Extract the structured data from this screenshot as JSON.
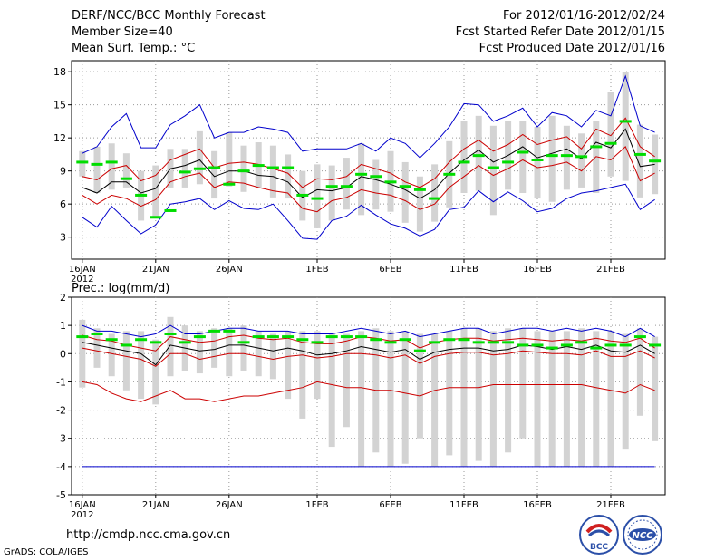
{
  "header": {
    "title": "DERF/NCC/BCC Monthly Forecast",
    "member_size": "Member Size=40",
    "variable": "Mean Surf. Temp.: °C",
    "period": "For 2012/01/16-2012/02/24",
    "start_date": "Fcst Started Refer Date 2012/01/15",
    "produced_date": "Fcst Produced Date 2012/01/16"
  },
  "footer": {
    "url": "http://cmdp.ncc.cma.gov.cn",
    "credit": "GrADS: COLA/IGES"
  },
  "logos": {
    "bcc": "BCC",
    "ncc": "NCC"
  },
  "colors": {
    "bar": "#d3d3d3",
    "median": "#00dd00",
    "max_min": "#0000cc",
    "spread": "#cc0000",
    "mean": "#000000",
    "grid": "#999999"
  },
  "chart_data": [
    {
      "type": "line",
      "title": "Mean Surf. Temp.: °C",
      "ylabel": "°C",
      "ylim": [
        1,
        19
      ],
      "yticks": [
        3,
        6,
        9,
        12,
        15,
        18
      ],
      "xticks": [
        {
          "day": 0,
          "label": "16JAN",
          "sublabel": "2012"
        },
        {
          "day": 5,
          "label": "21JAN"
        },
        {
          "day": 10,
          "label": "26JAN"
        },
        {
          "day": 16,
          "label": "1FEB"
        },
        {
          "day": 21,
          "label": "6FEB"
        },
        {
          "day": 26,
          "label": "11FEB"
        },
        {
          "day": 31,
          "label": "16FEB"
        },
        {
          "day": 36,
          "label": "21FEB"
        }
      ],
      "days": 40,
      "series": [
        {
          "name": "maximum",
          "color": "#0000cc",
          "values": [
            10.6,
            11.2,
            13.0,
            14.2,
            11.1,
            11.1,
            13.2,
            14.0,
            15.0,
            12.0,
            12.5,
            12.5,
            13.0,
            12.8,
            12.5,
            10.8,
            11.0,
            11.0,
            11.0,
            11.5,
            10.8,
            12.0,
            11.5,
            10.2,
            11.5,
            13.0,
            15.1,
            15.0,
            13.5,
            14.0,
            14.7,
            13.0,
            14.3,
            14.0,
            13.0,
            14.5,
            14.0,
            17.6,
            13.1,
            12.5
          ]
        },
        {
          "name": "mean_plus_spread",
          "color": "#cc0000",
          "values": [
            8.5,
            8.2,
            9.2,
            9.5,
            8.1,
            8.6,
            10.0,
            10.5,
            11.0,
            9.3,
            9.7,
            9.8,
            9.6,
            9.2,
            8.8,
            7.5,
            8.3,
            8.2,
            8.5,
            9.6,
            9.2,
            8.8,
            8.0,
            7.5,
            8.3,
            9.8,
            11.0,
            11.8,
            10.8,
            11.4,
            12.3,
            11.4,
            11.8,
            12.1,
            11.0,
            12.8,
            12.2,
            13.8,
            11.2,
            10.3
          ]
        },
        {
          "name": "ensemble_mean",
          "color": "#000000",
          "values": [
            7.5,
            7.0,
            8.0,
            8.0,
            7.0,
            7.4,
            9.2,
            9.5,
            10.0,
            8.5,
            9.0,
            9.0,
            8.6,
            8.5,
            8.0,
            6.6,
            7.3,
            7.2,
            7.5,
            8.5,
            8.2,
            7.8,
            7.3,
            6.5,
            7.3,
            8.8,
            10.0,
            10.9,
            9.8,
            10.4,
            11.2,
            10.2,
            10.6,
            11.0,
            10.1,
            11.6,
            11.1,
            12.8,
            9.4,
            9.6
          ]
        },
        {
          "name": "mean_minus_spread",
          "color": "#cc0000",
          "values": [
            6.8,
            6.0,
            6.8,
            6.5,
            5.8,
            6.4,
            8.0,
            8.5,
            8.8,
            7.5,
            8.0,
            7.9,
            7.5,
            7.2,
            7.0,
            5.6,
            5.3,
            6.3,
            6.6,
            7.3,
            7.0,
            6.8,
            6.3,
            5.5,
            6.0,
            7.5,
            8.5,
            9.5,
            8.6,
            9.2,
            10.0,
            9.3,
            9.5,
            9.8,
            9.0,
            10.3,
            10.0,
            11.2,
            8.1,
            8.8
          ]
        },
        {
          "name": "minimum",
          "color": "#0000cc",
          "values": [
            4.8,
            3.9,
            5.8,
            4.5,
            3.3,
            4.1,
            6.0,
            6.2,
            6.5,
            5.5,
            6.3,
            5.6,
            5.5,
            6.0,
            4.5,
            2.9,
            2.8,
            4.5,
            4.9,
            5.9,
            5.0,
            4.2,
            3.8,
            3.1,
            3.7,
            5.5,
            5.7,
            7.2,
            6.2,
            7.1,
            6.3,
            5.3,
            5.6,
            6.5,
            7.0,
            7.2,
            7.5,
            7.8,
            5.5,
            6.4
          ]
        }
      ],
      "box_ranges": [
        [
          8.5,
          10.8
        ],
        [
          7.0,
          11.2
        ],
        [
          7.3,
          11.5
        ],
        [
          7.5,
          10.6
        ],
        [
          4.5,
          9.0
        ],
        [
          4.8,
          9.5
        ],
        [
          7.5,
          11.0
        ],
        [
          7.5,
          11.0
        ],
        [
          7.8,
          12.6
        ],
        [
          6.5,
          10.8
        ],
        [
          7.6,
          12.5
        ],
        [
          7.1,
          11.3
        ],
        [
          7.5,
          11.6
        ],
        [
          6.6,
          11.3
        ],
        [
          6.5,
          10.5
        ],
        [
          4.5,
          9.0
        ],
        [
          3.8,
          9.6
        ],
        [
          4.5,
          9.5
        ],
        [
          5.5,
          10.2
        ],
        [
          5.0,
          11.5
        ],
        [
          5.5,
          10.0
        ],
        [
          5.3,
          10.8
        ],
        [
          4.3,
          9.8
        ],
        [
          3.5,
          8.5
        ],
        [
          4.4,
          9.6
        ],
        [
          5.7,
          11.7
        ],
        [
          7.0,
          13.5
        ],
        [
          7.2,
          14.0
        ],
        [
          5.0,
          13.1
        ],
        [
          7.3,
          13.5
        ],
        [
          7.0,
          13.5
        ],
        [
          6.5,
          13.0
        ],
        [
          6.2,
          14.0
        ],
        [
          7.3,
          13.1
        ],
        [
          7.5,
          12.4
        ],
        [
          7.0,
          13.5
        ],
        [
          8.5,
          16.2
        ],
        [
          8.1,
          18.0
        ],
        [
          6.6,
          13.2
        ],
        [
          6.9,
          12.3
        ]
      ],
      "medians": [
        9.8,
        9.6,
        9.8,
        8.3,
        6.8,
        4.8,
        5.4,
        8.9,
        9.2,
        9.3,
        7.8,
        9.0,
        9.5,
        9.3,
        9.3,
        6.8,
        6.5,
        7.6,
        7.6,
        8.7,
        8.5,
        8.0,
        7.6,
        7.3,
        6.5,
        8.7,
        9.8,
        10.4,
        9.3,
        9.8,
        10.7,
        10.0,
        10.4,
        10.4,
        10.3,
        11.2,
        11.5,
        13.5,
        10.5,
        9.9
      ]
    },
    {
      "type": "line",
      "title": "Prec.: log(mm/d)",
      "ylabel": "log(mm/d)",
      "ylim": [
        -5,
        2
      ],
      "yticks": [
        -5,
        -4,
        -3,
        -2,
        -1,
        0,
        1,
        2
      ],
      "xticks": [
        {
          "day": 0,
          "label": "16JAN",
          "sublabel": "2012"
        },
        {
          "day": 5,
          "label": "21JAN"
        },
        {
          "day": 10,
          "label": "26JAN"
        },
        {
          "day": 16,
          "label": "1FEB"
        },
        {
          "day": 21,
          "label": "6FEB"
        },
        {
          "day": 26,
          "label": "11FEB"
        },
        {
          "day": 31,
          "label": "16FEB"
        },
        {
          "day": 36,
          "label": "21FEB"
        }
      ],
      "days": 40,
      "series": [
        {
          "name": "maximum",
          "color": "#0000cc",
          "values": [
            1.0,
            0.8,
            0.8,
            0.7,
            0.6,
            0.7,
            1.0,
            0.7,
            0.7,
            0.8,
            0.9,
            0.9,
            0.8,
            0.8,
            0.8,
            0.7,
            0.7,
            0.7,
            0.8,
            0.9,
            0.8,
            0.7,
            0.8,
            0.6,
            0.7,
            0.8,
            0.9,
            0.9,
            0.7,
            0.8,
            0.9,
            0.9,
            0.8,
            0.9,
            0.8,
            0.9,
            0.8,
            0.6,
            0.9,
            0.6
          ]
        },
        {
          "name": "mean_plus_spread",
          "color": "#cc0000",
          "values": [
            0.65,
            0.5,
            0.45,
            0.3,
            0.2,
            0.1,
            0.6,
            0.5,
            0.4,
            0.45,
            0.6,
            0.65,
            0.55,
            0.5,
            0.55,
            0.4,
            0.35,
            0.35,
            0.45,
            0.6,
            0.55,
            0.45,
            0.5,
            0.2,
            0.4,
            0.5,
            0.55,
            0.55,
            0.45,
            0.5,
            0.55,
            0.5,
            0.45,
            0.5,
            0.45,
            0.55,
            0.45,
            0.4,
            0.55,
            0.2
          ]
        },
        {
          "name": "ensemble_mean",
          "color": "#000000",
          "values": [
            0.4,
            0.3,
            0.2,
            0.1,
            0.0,
            -0.4,
            0.3,
            0.2,
            0.1,
            0.15,
            0.3,
            0.3,
            0.2,
            0.1,
            0.2,
            0.1,
            -0.05,
            0.0,
            0.1,
            0.25,
            0.15,
            0.05,
            0.15,
            -0.2,
            0.05,
            0.15,
            0.2,
            0.2,
            0.1,
            0.15,
            0.3,
            0.25,
            0.15,
            0.25,
            0.15,
            0.3,
            0.1,
            0.05,
            0.3,
            0.0
          ]
        },
        {
          "name": "mean_minus_spread",
          "color": "#cc0000",
          "values": [
            0.2,
            0.1,
            0.0,
            -0.1,
            -0.2,
            -0.45,
            0.0,
            0.0,
            -0.2,
            -0.1,
            0.0,
            0.0,
            -0.1,
            -0.2,
            -0.1,
            -0.05,
            -0.15,
            -0.1,
            0.0,
            0.0,
            -0.05,
            -0.15,
            -0.05,
            -0.35,
            -0.1,
            0.0,
            0.05,
            0.05,
            -0.05,
            0.0,
            0.1,
            0.05,
            0.0,
            0.0,
            -0.05,
            0.1,
            -0.1,
            -0.1,
            0.1,
            -0.15
          ]
        },
        {
          "name": "minimum",
          "color": "#cc0000",
          "values": [
            -1.0,
            -1.1,
            -1.4,
            -1.6,
            -1.7,
            -1.5,
            -1.3,
            -1.6,
            -1.6,
            -1.7,
            -1.6,
            -1.5,
            -1.5,
            -1.4,
            -1.3,
            -1.2,
            -1.0,
            -1.1,
            -1.2,
            -1.2,
            -1.3,
            -1.3,
            -1.4,
            -1.5,
            -1.3,
            -1.2,
            -1.2,
            -1.2,
            -1.1,
            -1.1,
            -1.1,
            -1.1,
            -1.1,
            -1.1,
            -1.1,
            -1.2,
            -1.3,
            -1.4,
            -1.1,
            -1.3
          ]
        },
        {
          "name": "floor",
          "color": "#0000cc",
          "values": [
            -4,
            -4,
            -4,
            -4,
            -4,
            -4,
            -4,
            -4,
            -4,
            -4,
            -4,
            -4,
            -4,
            -4,
            -4,
            -4,
            -4,
            -4,
            -4,
            -4,
            -4,
            -4,
            -4,
            -4,
            -4,
            -4,
            -4,
            -4,
            -4,
            -4,
            -4,
            -4,
            -4,
            -4,
            -4,
            -4,
            -4,
            -4,
            -4,
            -4
          ]
        }
      ],
      "box_ranges": [
        [
          -1.2,
          1.2
        ],
        [
          -0.5,
          0.9
        ],
        [
          -0.8,
          0.7
        ],
        [
          -1.3,
          0.8
        ],
        [
          -1.6,
          0.8
        ],
        [
          -1.8,
          0.5
        ],
        [
          -0.8,
          1.3
        ],
        [
          -0.6,
          1.0
        ],
        [
          -0.7,
          0.8
        ],
        [
          -0.5,
          0.9
        ],
        [
          -0.8,
          0.9
        ],
        [
          -0.6,
          1.0
        ],
        [
          -0.8,
          0.8
        ],
        [
          -0.9,
          0.7
        ],
        [
          -1.6,
          0.8
        ],
        [
          -2.3,
          0.8
        ],
        [
          -1.6,
          0.8
        ],
        [
          -3.3,
          0.7
        ],
        [
          -2.6,
          0.7
        ],
        [
          -4.0,
          0.8
        ],
        [
          -3.5,
          0.9
        ],
        [
          -4.0,
          0.8
        ],
        [
          -3.9,
          0.8
        ],
        [
          -3.0,
          0.7
        ],
        [
          -4.0,
          0.7
        ],
        [
          -3.6,
          0.8
        ],
        [
          -4.0,
          0.9
        ],
        [
          -3.8,
          0.9
        ],
        [
          -4.0,
          0.8
        ],
        [
          -3.5,
          0.9
        ],
        [
          -3.0,
          0.9
        ],
        [
          -4.0,
          0.8
        ],
        [
          -4.0,
          0.8
        ],
        [
          -4.0,
          0.8
        ],
        [
          -4.0,
          0.9
        ],
        [
          -4.0,
          0.8
        ],
        [
          -4.0,
          0.8
        ],
        [
          -3.4,
          0.7
        ],
        [
          -2.2,
          0.9
        ],
        [
          -3.1,
          0.6
        ]
      ],
      "medians": [
        0.6,
        0.7,
        0.5,
        0.3,
        0.5,
        0.4,
        0.7,
        0.4,
        0.6,
        0.8,
        0.8,
        0.4,
        0.6,
        0.6,
        0.6,
        0.5,
        0.4,
        0.6,
        0.6,
        0.6,
        0.5,
        0.4,
        0.5,
        0.1,
        0.4,
        0.5,
        0.5,
        0.4,
        0.4,
        0.4,
        0.3,
        0.3,
        0.2,
        0.3,
        0.4,
        0.2,
        0.3,
        0.3,
        0.6,
        0.3
      ]
    }
  ]
}
